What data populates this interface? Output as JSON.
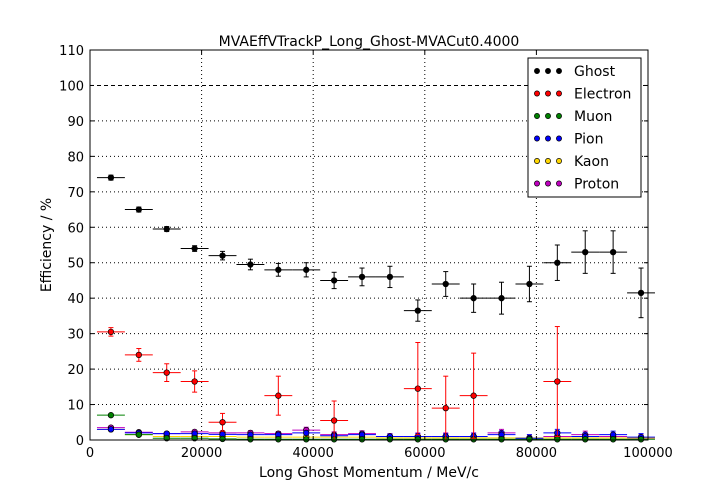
{
  "chart_data": {
    "type": "scatter",
    "title": "MVAEffVTrackP_Long_Ghost-MVACut0.4000",
    "xlabel": "Long Ghost Momentum / MeV/c",
    "ylabel": "Efficiency / %",
    "xlim": [
      0,
      100000
    ],
    "ylim": [
      0,
      110
    ],
    "xticks": [
      0,
      20000,
      40000,
      60000,
      80000,
      100000
    ],
    "yticks": [
      0,
      10,
      20,
      30,
      40,
      50,
      60,
      70,
      80,
      90,
      100,
      110
    ],
    "grid": true,
    "reference_line": 100,
    "legend_position": "top-right",
    "bin_half_width": 2500,
    "series": [
      {
        "name": "Ghost",
        "color": "#000000",
        "x": [
          3750,
          8750,
          13750,
          18750,
          23750,
          28750,
          33750,
          38750,
          43750,
          48750,
          53750,
          58750,
          63750,
          68750,
          73750,
          78750,
          83750,
          88750,
          93750,
          98750
        ],
        "y": [
          74,
          65,
          59.5,
          54,
          52,
          49.5,
          48,
          48,
          45,
          46,
          46,
          36.5,
          44,
          40,
          40,
          44,
          50,
          53,
          53,
          41.5
        ],
        "err": [
          0.7,
          0.7,
          0.7,
          0.8,
          1.2,
          1.5,
          1.8,
          2,
          2.3,
          2.5,
          3,
          3,
          3.5,
          4,
          4.5,
          5,
          5,
          6,
          6,
          7
        ]
      },
      {
        "name": "Electron",
        "color": "#ff0000",
        "x": [
          3750,
          8750,
          13750,
          18750,
          23750,
          33750,
          43750,
          58750,
          63750,
          68750,
          83750
        ],
        "y": [
          30.5,
          24,
          19,
          16.5,
          5,
          12.5,
          5.5,
          14.5,
          9,
          12.5,
          16.5
        ],
        "err": [
          1.2,
          1.8,
          2.5,
          3,
          2.5,
          5.5,
          5.5,
          13,
          9,
          12,
          15.5
        ]
      },
      {
        "name": "Muon",
        "color": "#008000",
        "x": [
          3750,
          8750,
          13750,
          18750,
          23750,
          28750,
          33750,
          38750,
          43750,
          48750,
          53750,
          58750,
          63750,
          68750,
          73750,
          78750,
          83750,
          88750,
          93750,
          98750
        ],
        "y": [
          7,
          1.5,
          0.5,
          0.5,
          0.3,
          0.2,
          0.2,
          0.2,
          0.2,
          0.2,
          0.2,
          0.2,
          0.2,
          0.2,
          0.2,
          0.2,
          0.2,
          0.2,
          0.2,
          0.2
        ],
        "err": [
          0.3,
          0.3,
          0.2,
          0.2,
          0.2,
          0.2,
          0.2,
          0.2,
          0.2,
          0.2,
          0.2,
          0.2,
          0.2,
          0.2,
          0.2,
          0.2,
          0.2,
          0.2,
          0.2,
          0.2
        ]
      },
      {
        "name": "Pion",
        "color": "#0000ff",
        "x": [
          3750,
          8750,
          13750,
          18750,
          23750,
          28750,
          33750,
          38750,
          43750,
          48750,
          53750,
          58750,
          63750,
          68750,
          73750,
          78750,
          83750,
          88750,
          93750,
          98750
        ],
        "y": [
          3,
          2,
          1.8,
          1.8,
          1.6,
          1.5,
          1.5,
          2,
          1.2,
          1.5,
          1,
          1,
          1,
          1,
          1.5,
          0.5,
          2,
          1,
          1.5,
          0.8
        ],
        "err": [
          0.2,
          0.2,
          0.2,
          0.3,
          0.4,
          0.5,
          0.5,
          0.6,
          0.6,
          0.7,
          0.7,
          0.8,
          0.8,
          0.9,
          1,
          1,
          1,
          1,
          1,
          1
        ]
      },
      {
        "name": "Kaon",
        "color": "#ffd700",
        "x": [
          3750,
          8750,
          13750,
          18750,
          23750,
          28750,
          33750,
          38750,
          43750,
          48750,
          53750,
          58750,
          63750,
          68750,
          73750,
          78750,
          83750,
          88750,
          93750,
          98750
        ],
        "y": [
          3,
          1.5,
          1,
          1,
          1,
          0.8,
          0.8,
          0.8,
          0.8,
          0.8,
          0.6,
          0.6,
          0.6,
          0.6,
          0.6,
          0.6,
          0.6,
          0.6,
          0.6,
          0.6
        ],
        "err": [
          0.2,
          0.2,
          0.2,
          0.2,
          0.3,
          0.3,
          0.3,
          0.3,
          0.4,
          0.4,
          0.4,
          0.4,
          0.4,
          0.5,
          0.5,
          0.5,
          0.5,
          0.5,
          0.5,
          0.5
        ]
      },
      {
        "name": "Proton",
        "color": "#bf00bf",
        "x": [
          3750,
          8750,
          13750,
          18750,
          23750,
          28750,
          33750,
          38750,
          43750,
          48750,
          53750,
          58750,
          63750,
          68750,
          73750,
          78750,
          83750,
          88750,
          93750,
          98750
        ],
        "y": [
          3.5,
          2.2,
          1.8,
          2.3,
          2,
          2,
          1.8,
          2.8,
          1.5,
          1.8,
          1,
          1,
          1,
          1,
          2,
          0.5,
          1,
          1.5,
          1,
          0.5
        ],
        "err": [
          0.3,
          0.3,
          0.3,
          0.4,
          0.5,
          0.6,
          0.6,
          0.8,
          0.8,
          0.8,
          0.8,
          1,
          1,
          1,
          1,
          1,
          1,
          1,
          1,
          1
        ]
      }
    ]
  }
}
